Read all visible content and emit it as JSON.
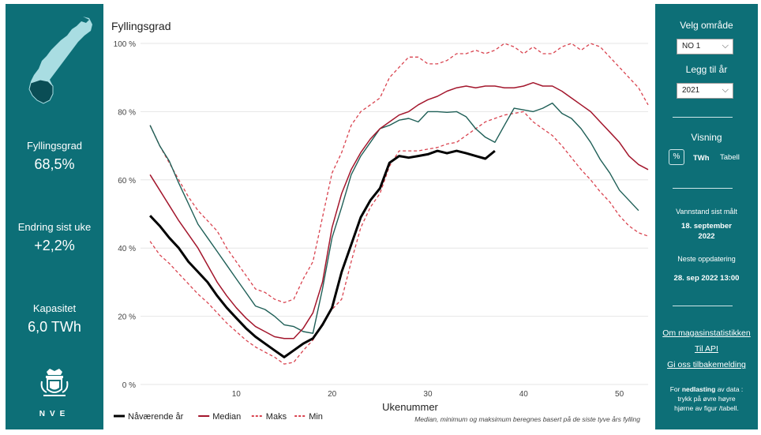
{
  "left": {
    "kpis": [
      {
        "label": "Fyllingsgrad",
        "value": "68,5%"
      },
      {
        "label": "Endring sist uke",
        "value": "+2,2%"
      },
      {
        "label": "Kapasitet",
        "value": "6,0 TWh"
      }
    ],
    "logo_text": "NVE"
  },
  "chart_data": {
    "type": "line",
    "title": "Fyllingsgrad",
    "xlabel": "Ukenummer",
    "ylabel": "",
    "xlim": [
      0,
      53
    ],
    "ylim": [
      0,
      100
    ],
    "x_ticks": [
      10,
      20,
      30,
      40,
      50
    ],
    "y_ticks": [
      "0 %",
      "20 %",
      "40 %",
      "60 %",
      "80 %",
      "100 %"
    ],
    "y_tick_values": [
      0,
      20,
      40,
      60,
      80,
      100
    ],
    "footnote": "Median, minimum og maksimum beregnes basert på de siste tyve års fylling",
    "series": [
      {
        "name": "Nåværende år",
        "color": "#000000",
        "style": "solid",
        "width": 3,
        "x": [
          1,
          2,
          3,
          4,
          5,
          6,
          7,
          8,
          9,
          10,
          11,
          12,
          13,
          14,
          15,
          16,
          17,
          18,
          19,
          20,
          21,
          22,
          23,
          24,
          25,
          26,
          27,
          28,
          29,
          30,
          31,
          32,
          33,
          34,
          35,
          36,
          37
        ],
        "y": [
          49.5,
          46.5,
          43,
          40,
          36,
          33,
          30,
          26,
          22.5,
          19.5,
          16.5,
          14,
          12,
          10,
          8,
          10,
          12,
          13.5,
          17.5,
          22.5,
          33,
          41,
          49,
          54,
          57.5,
          65,
          67,
          66.5,
          67,
          67.5,
          68.5,
          67.8,
          68.5,
          67.8,
          67,
          66.2,
          68.5
        ]
      },
      {
        "name": "Median",
        "color": "#a3162c",
        "style": "solid",
        "width": 1.5,
        "x": [
          1,
          2,
          3,
          4,
          5,
          6,
          7,
          8,
          9,
          10,
          11,
          12,
          13,
          14,
          15,
          16,
          17,
          18,
          19,
          20,
          21,
          22,
          23,
          24,
          25,
          26,
          27,
          28,
          29,
          30,
          31,
          32,
          33,
          34,
          35,
          36,
          37,
          38,
          39,
          40,
          41,
          42,
          43,
          44,
          45,
          46,
          47,
          48,
          49,
          50,
          51,
          52,
          53
        ],
        "y": [
          61.5,
          57,
          52.5,
          48,
          44,
          40,
          35,
          30,
          26,
          22.5,
          19.5,
          17,
          15.5,
          14,
          13.5,
          13.5,
          16.5,
          21,
          30,
          46,
          56,
          63,
          68,
          72,
          75,
          77,
          79,
          80,
          82,
          83.5,
          84.5,
          86,
          87,
          87.5,
          87,
          87.5,
          87.5,
          87,
          87,
          87.5,
          88.5,
          87.5,
          87.5,
          86,
          84,
          82,
          80,
          77,
          74,
          71,
          67,
          64.5,
          63
        ]
      },
      {
        "name": "Maks",
        "color": "#d9434f",
        "style": "dashed",
        "width": 1.3,
        "x": [
          1,
          2,
          3,
          4,
          5,
          6,
          7,
          8,
          9,
          10,
          11,
          12,
          13,
          14,
          15,
          16,
          17,
          18,
          19,
          20,
          21,
          22,
          23,
          24,
          25,
          26,
          27,
          28,
          29,
          30,
          31,
          32,
          33,
          34,
          35,
          36,
          37,
          38,
          39,
          40,
          41,
          42,
          43,
          44,
          45,
          46,
          47,
          48,
          49,
          50,
          51,
          52,
          53
        ],
        "y": [
          76,
          70,
          65,
          60,
          55,
          51,
          48,
          45,
          40,
          36,
          32,
          28,
          27,
          25,
          24,
          25,
          31,
          36,
          49,
          62,
          68,
          76,
          80,
          82,
          84,
          90,
          93,
          96,
          96,
          94,
          94,
          95,
          97,
          97,
          98,
          97,
          98,
          100,
          99,
          97,
          99,
          97,
          97,
          99,
          100,
          98,
          100,
          99,
          96,
          93,
          90,
          87,
          82
        ]
      },
      {
        "name": "Min",
        "color": "#d9434f",
        "style": "dashed",
        "width": 1.3,
        "x": [
          1,
          2,
          3,
          4,
          5,
          6,
          7,
          8,
          9,
          10,
          11,
          12,
          13,
          14,
          15,
          16,
          17,
          18,
          19,
          20,
          21,
          22,
          23,
          24,
          25,
          26,
          27,
          28,
          29,
          30,
          31,
          32,
          33,
          34,
          35,
          36,
          37,
          38,
          39,
          40,
          41,
          42,
          43,
          44,
          45,
          46,
          47,
          48,
          49,
          50,
          51,
          52,
          53
        ],
        "y": [
          42,
          38,
          35.5,
          32.5,
          29.5,
          26.5,
          24,
          21,
          18,
          15.5,
          13,
          11,
          9.5,
          8,
          6,
          6.5,
          10,
          13,
          18,
          22,
          25,
          36,
          46,
          52,
          56,
          64,
          68.5,
          68.5,
          68.5,
          69,
          69.5,
          70.5,
          71,
          73,
          75,
          77,
          78,
          79,
          79.5,
          80,
          77,
          75,
          73,
          70,
          66.5,
          63,
          60,
          56.5,
          53.5,
          49.5,
          46.5,
          44.5,
          43.5
        ]
      },
      {
        "name": "",
        "color": "#1f5f57",
        "style": "solid",
        "width": 1.4,
        "x": [
          1,
          2,
          3,
          4,
          5,
          6,
          7,
          8,
          9,
          10,
          11,
          12,
          13,
          14,
          15,
          16,
          17,
          18,
          19,
          20,
          21,
          22,
          23,
          24,
          25,
          26,
          27,
          28,
          29,
          30,
          31,
          32,
          33,
          34,
          35,
          36,
          37,
          38,
          39,
          40,
          41,
          42,
          43,
          44,
          45,
          46,
          47,
          48,
          49,
          50,
          51,
          52
        ],
        "y": [
          76,
          70,
          65.5,
          59,
          53,
          47,
          43,
          39,
          35,
          31,
          27,
          23,
          22,
          20,
          17.5,
          17,
          15.5,
          15,
          28,
          43,
          52,
          61.5,
          67,
          71,
          75,
          76,
          77.5,
          78,
          77,
          80,
          80,
          79.8,
          80,
          78.5,
          75,
          72.5,
          71,
          76,
          81,
          80.5,
          80,
          81,
          82.5,
          79.5,
          78,
          75,
          71,
          66,
          62,
          57,
          54,
          51
        ]
      }
    ]
  },
  "right": {
    "omrade_label": "Velg område",
    "omrade_value": "NO 1",
    "ar_label": "Legg til år",
    "ar_value": "2021",
    "visning_label": "Visning",
    "visning_options": [
      "%",
      "TWh",
      "Tabell"
    ],
    "vannstand_label": "Vannstand sist målt",
    "vannstand_date_line1": "18. september",
    "vannstand_date_line2": "2022",
    "neste_label": "Neste oppdatering",
    "neste_value": "28. sep 2022 13:00",
    "links": [
      "Om magasinstatistikken",
      "Til API",
      "Gi oss tilbakemelding"
    ],
    "info_line1_pre": "For ",
    "info_line1_bold": "nedlasting",
    "info_line1_post": " av data :",
    "info_line2": "trykk på øvre høyre",
    "info_line3": "hjørne av figur /tabell."
  }
}
